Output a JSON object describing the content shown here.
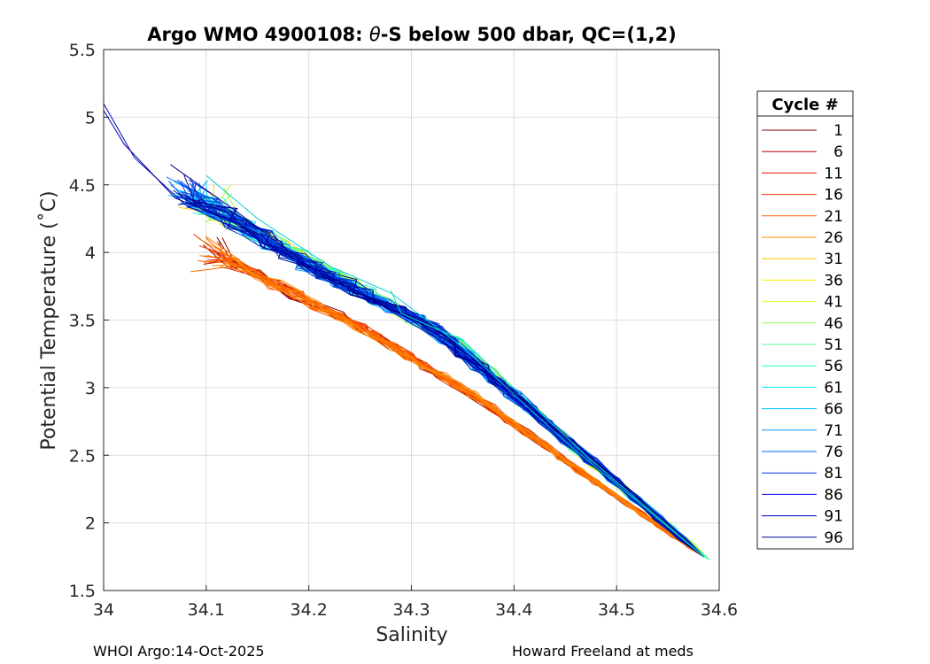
{
  "chart_data": {
    "type": "line",
    "title_prefix": "Argo WMO 4900108: ",
    "title_theta": "θ",
    "title_suffix": "-S below 500 dbar,  QC=(1,2)",
    "xlabel": "Salinity",
    "ylabel": "Potential Temperature (˚C)",
    "xlim": [
      34,
      34.6
    ],
    "ylim": [
      1.5,
      5.5
    ],
    "xticks": [
      "34",
      "34.1",
      "34.2",
      "34.3",
      "34.4",
      "34.5",
      "34.6"
    ],
    "yticks": [
      "1.5",
      "2",
      "2.5",
      "3",
      "3.5",
      "4",
      "4.5",
      "5",
      "5.5"
    ],
    "grid": true,
    "legend": {
      "title": "Cycle #",
      "position": "right",
      "entries": [
        {
          "label": "1",
          "color": "#800000"
        },
        {
          "label": "6",
          "color": "#c80000"
        },
        {
          "label": "11",
          "color": "#f01000"
        },
        {
          "label": "16",
          "color": "#ff3000"
        },
        {
          "label": "21",
          "color": "#ff6000"
        },
        {
          "label": "26",
          "color": "#ff9000"
        },
        {
          "label": "31",
          "color": "#ffc000"
        },
        {
          "label": "36",
          "color": "#ffee00"
        },
        {
          "label": "41",
          "color": "#d8ff20"
        },
        {
          "label": "46",
          "color": "#90ff60"
        },
        {
          "label": "51",
          "color": "#50ff90"
        },
        {
          "label": "56",
          "color": "#20ffc8"
        },
        {
          "label": "61",
          "color": "#00f0ff"
        },
        {
          "label": "66",
          "color": "#00c0ff"
        },
        {
          "label": "71",
          "color": "#0090ff"
        },
        {
          "label": "76",
          "color": "#0060ff"
        },
        {
          "label": "81",
          "color": "#0030ff"
        },
        {
          "label": "86",
          "color": "#0000f0"
        },
        {
          "label": "91",
          "color": "#0000c0"
        },
        {
          "label": "96",
          "color": "#000090"
        }
      ]
    },
    "profile_groups": [
      {
        "cycles": "1-30",
        "count": 30,
        "color_stops": [
          "#800000",
          "#ff4000",
          "#ff9000"
        ],
        "start": [
          34.105,
          4.0
        ],
        "knees": [
          [
            34.25,
            3.45
          ],
          [
            34.36,
            2.95
          ],
          [
            34.48,
            2.3
          ]
        ],
        "end": [
          34.585,
          1.75
        ],
        "spread": 0.006
      },
      {
        "cycles": "31-60",
        "count": 30,
        "color_stops": [
          "#ffd000",
          "#a0ff50",
          "#20ffd0"
        ],
        "start": [
          34.1,
          4.35
        ],
        "knees": [
          [
            34.22,
            3.85
          ],
          [
            34.34,
            3.35
          ],
          [
            34.46,
            2.55
          ]
        ],
        "end": [
          34.59,
          1.73
        ],
        "spread": 0.012
      },
      {
        "cycles": "61-100",
        "count": 40,
        "color_stops": [
          "#00e0ff",
          "#0050ff",
          "#000090"
        ],
        "start": [
          34.08,
          4.45
        ],
        "knees": [
          [
            34.2,
            3.9
          ],
          [
            34.32,
            3.45
          ],
          [
            34.43,
            2.75
          ]
        ],
        "end": [
          34.585,
          1.75
        ],
        "spread": 0.014
      }
    ],
    "outlier_profiles": [
      {
        "color": "#0000c0",
        "points": [
          [
            34.0,
            5.1
          ],
          [
            34.03,
            4.7
          ],
          [
            34.08,
            4.35
          ],
          [
            34.15,
            4.1
          ],
          [
            34.25,
            3.7
          ],
          [
            34.35,
            3.25
          ],
          [
            34.45,
            2.6
          ],
          [
            34.585,
            1.75
          ]
        ]
      },
      {
        "color": "#0000a0",
        "points": [
          [
            34.0,
            5.05
          ],
          [
            34.02,
            4.8
          ],
          [
            34.07,
            4.4
          ],
          [
            34.12,
            4.25
          ],
          [
            34.22,
            3.8
          ],
          [
            34.33,
            3.4
          ],
          [
            34.44,
            2.7
          ],
          [
            34.585,
            1.75
          ]
        ]
      },
      {
        "color": "#000090",
        "points": [
          [
            34.065,
            4.65
          ],
          [
            34.13,
            4.3
          ],
          [
            34.2,
            3.9
          ],
          [
            34.3,
            3.5
          ],
          [
            34.42,
            2.85
          ],
          [
            34.585,
            1.75
          ]
        ]
      },
      {
        "color": "#00d0d0",
        "points": [
          [
            34.1,
            4.57
          ],
          [
            34.15,
            4.25
          ],
          [
            34.22,
            3.9
          ],
          [
            34.28,
            3.7
          ],
          [
            34.35,
            3.3
          ],
          [
            34.45,
            2.6
          ],
          [
            34.585,
            1.75
          ]
        ]
      },
      {
        "color": "#00e8c0",
        "points": [
          [
            34.28,
            3.72
          ],
          [
            34.29,
            3.55
          ],
          [
            34.35,
            3.35
          ],
          [
            34.47,
            2.5
          ],
          [
            34.585,
            1.75
          ]
        ]
      }
    ],
    "footer_left": "WHOI Argo:14-Oct-2025",
    "footer_right": "Howard Freeland at meds"
  }
}
